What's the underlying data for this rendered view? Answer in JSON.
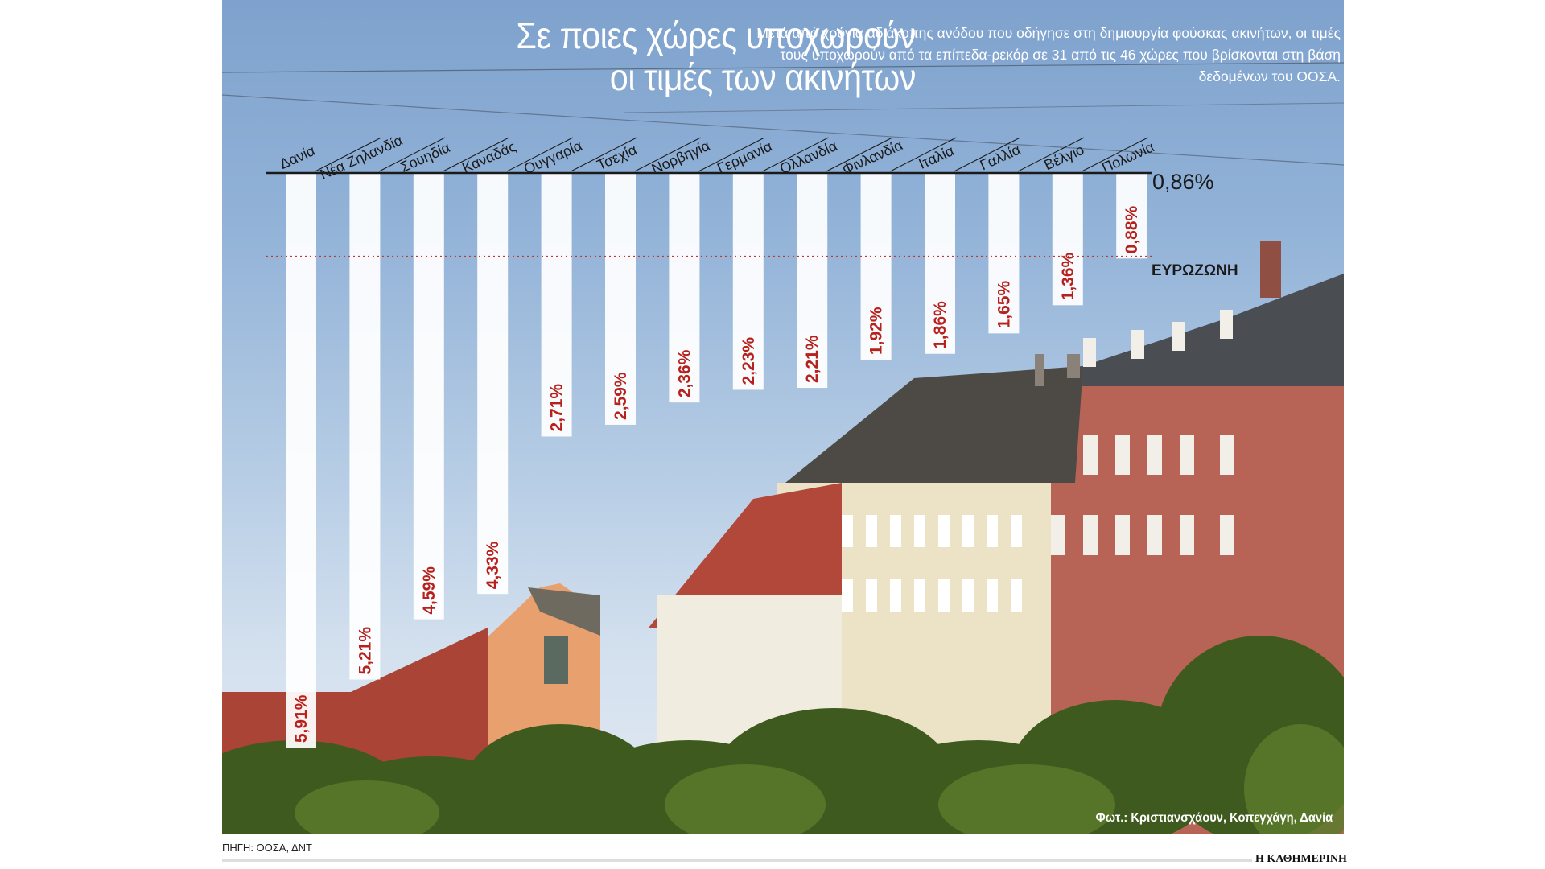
{
  "title_lines": [
    "Σε ποιες χώρες υποχωρούν",
    "οι τιμές των ακινήτων"
  ],
  "intro": "Μετά από χρόνια αδιάκοπης ανόδου που οδήγησε στη δημιουργία φούσκας ακινήτων, οι τιμές τους υποχωρούν από τα επίπεδα-ρεκόρ σε 31 από τις 46 χώρες που βρίσκονται στη βάση δεδομένων του ΟΟΣΑ.",
  "photo_credit": "Φωτ.: Κριστιανσχάουν,  Κοπεγχάγη, Δανία",
  "source": "ΠΗΓΗ: ΟΟΣΑ, ΔΝΤ",
  "brand": "Η ΚΑΘΗΜΕΡΙΝΗ",
  "colors": {
    "bar_fill": "#ffffff",
    "value_label": "#b8201c",
    "eurozone_line": "#c0392b",
    "text_dark": "#1a1a1a",
    "title": "#ffffff"
  },
  "chart_data": {
    "type": "bar",
    "orientation": "vertical, hanging from top baseline",
    "categories": [
      "Δανία",
      "Νέα Ζηλανδία",
      "Σουηδία",
      "Καναδάς",
      "Ουγγαρία",
      "Τσεχία",
      "Νορβηγία",
      "Γερμανία",
      "Ολλανδία",
      "Φινλανδία",
      "Ιταλία",
      "Γαλλία",
      "Βέλγιο",
      "Πολωνία"
    ],
    "values": [
      5.91,
      5.21,
      4.59,
      4.33,
      2.71,
      2.59,
      2.36,
      2.23,
      2.21,
      1.92,
      1.86,
      1.65,
      1.36,
      0.88
    ],
    "value_labels": [
      "5,91%",
      "5,21%",
      "4,59%",
      "4,33%",
      "2,71%",
      "2,59%",
      "2,36%",
      "2,23%",
      "2,21%",
      "1,92%",
      "1,86%",
      "1,65%",
      "1,36%",
      "0,88%"
    ],
    "reference_line": {
      "name": "ΕΥΡΩΖΩΝΗ",
      "value": 0.86,
      "label": "0,86%",
      "style": "dotted"
    },
    "grid": false
  }
}
